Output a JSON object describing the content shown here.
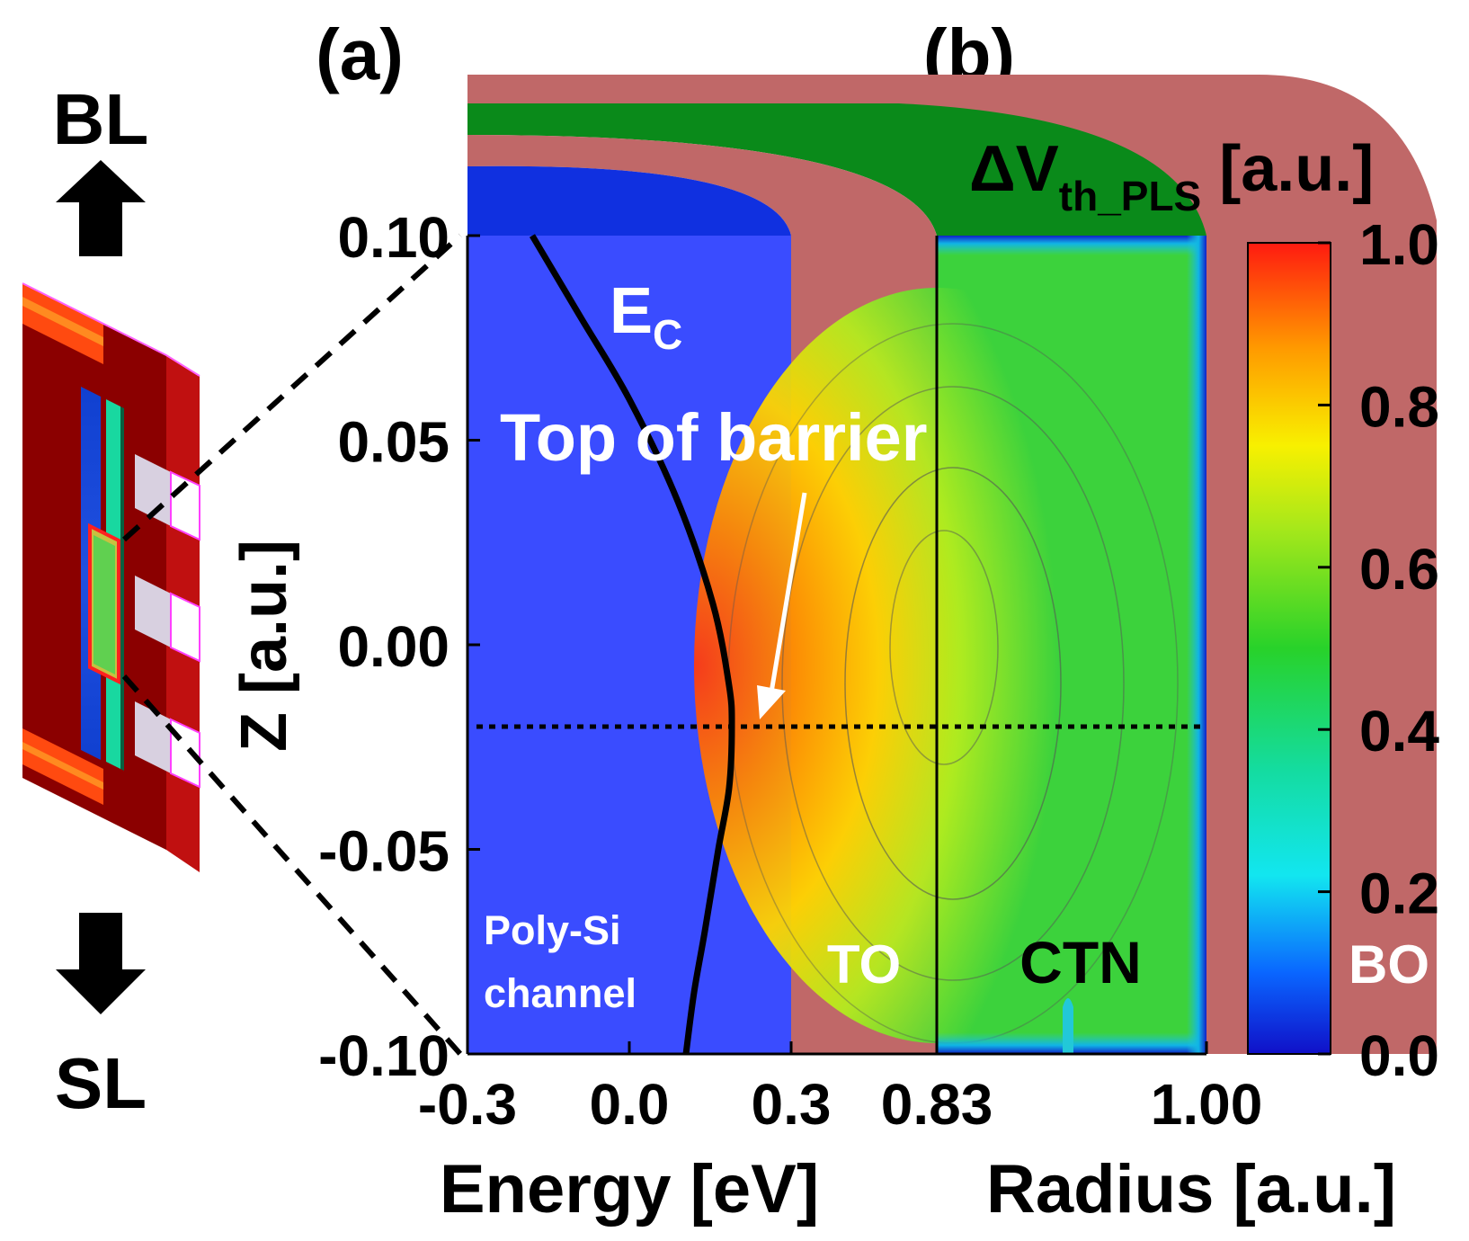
{
  "chart_data": {
    "type": "heatmap",
    "panel_labels": [
      "(a)",
      "(b)"
    ],
    "device": {
      "top_label": "BL",
      "bottom_label": "SL"
    },
    "y_axis": {
      "label": "Z [a.u.]",
      "range": [
        -0.1,
        0.1
      ],
      "ticks": [
        -0.1,
        -0.05,
        0.0,
        0.05,
        0.1
      ],
      "tick_labels": [
        "-0.10",
        "-0.05",
        "0.00",
        "0.05",
        "0.10"
      ]
    },
    "panel_a": {
      "xlabel": "Energy [eV]",
      "xlim": [
        -0.3,
        0.3
      ],
      "tick_labels": [
        "-0.3",
        "0.0",
        "0.3"
      ],
      "curve": {
        "name": "E_C",
        "label_main": "E",
        "label_sub": "C",
        "points": [
          [
            -0.18,
            0.1
          ],
          [
            -0.09,
            0.08
          ],
          [
            0.0,
            0.06
          ],
          [
            0.09,
            0.035
          ],
          [
            0.155,
            0.01
          ],
          [
            0.185,
            -0.01
          ],
          [
            0.19,
            -0.02
          ],
          [
            0.185,
            -0.035
          ],
          [
            0.165,
            -0.05
          ],
          [
            0.14,
            -0.07
          ],
          [
            0.12,
            -0.085
          ],
          [
            0.105,
            -0.1
          ]
        ]
      },
      "annotation": "Top of barrier",
      "barrier_z": -0.02,
      "region_label_line1": "Poly-Si",
      "region_label_line2": "channel"
    },
    "panel_b": {
      "xlabel": "Radius [a.u.]",
      "tick_labels": [
        "0.83",
        "1.00"
      ],
      "layers": [
        "TO",
        "CTN",
        "BO"
      ],
      "title_main": "ΔV",
      "title_sub": "th_PLS",
      "title_unit": "[a.u.]"
    },
    "colorbar": {
      "range": [
        0.0,
        1.0
      ],
      "ticks": [
        0.0,
        0.2,
        0.4,
        0.6,
        0.8,
        1.0
      ],
      "tick_labels": [
        "0.0",
        "0.2",
        "0.4",
        "0.6",
        "0.8",
        "1.0"
      ]
    }
  }
}
